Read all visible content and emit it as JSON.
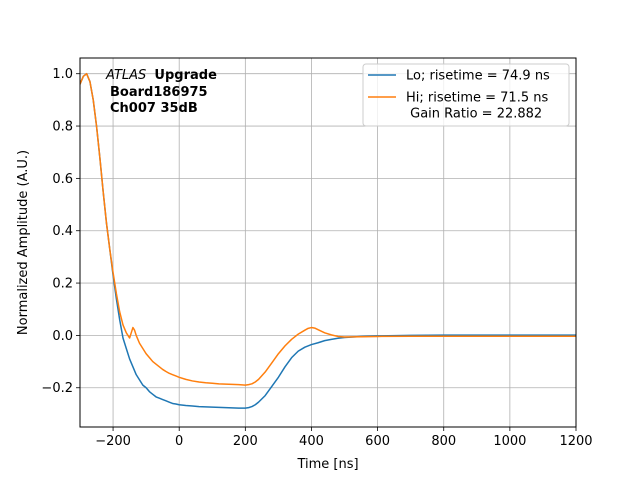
{
  "chart_data": {
    "type": "line",
    "xlabel": "Time [ns]",
    "ylabel": "Normalized Amplitude (A.U.)",
    "xlim": [
      -300,
      1200
    ],
    "ylim": [
      -0.35,
      1.06
    ],
    "xticks": [
      -200,
      0,
      200,
      400,
      600,
      800,
      1000,
      1200
    ],
    "xtick_labels": [
      "−200",
      "0",
      "200",
      "400",
      "600",
      "800",
      "1000",
      "1200"
    ],
    "yticks": [
      -0.2,
      0.0,
      0.2,
      0.4,
      0.6,
      0.8,
      1.0
    ],
    "ytick_labels": [
      "−0.2",
      "0.0",
      "0.2",
      "0.4",
      "0.6",
      "0.8",
      "1.0"
    ],
    "grid": true,
    "legend_position": "top-right",
    "annotation": {
      "italic": "ATLAS",
      "bold": "Upgrade",
      "line2": "Board186975",
      "line3": "Ch007 35dB"
    },
    "series": [
      {
        "name": "Lo; risetime = 74.9 ns",
        "color": "#1f77b4",
        "x": [
          -300,
          -290,
          -280,
          -270,
          -260,
          -250,
          -240,
          -230,
          -220,
          -210,
          -200,
          -190,
          -180,
          -170,
          -160,
          -150,
          -140,
          -130,
          -120,
          -110,
          -100,
          -90,
          -80,
          -70,
          -60,
          -50,
          -40,
          -30,
          -20,
          -10,
          0,
          20,
          40,
          60,
          80,
          100,
          120,
          140,
          160,
          180,
          200,
          210,
          220,
          230,
          240,
          260,
          280,
          300,
          320,
          340,
          360,
          380,
          400,
          420,
          440,
          460,
          480,
          500,
          550,
          600,
          700,
          800,
          900,
          1000,
          1100,
          1200
        ],
        "y": [
          0.96,
          0.99,
          1.0,
          0.97,
          0.9,
          0.8,
          0.68,
          0.55,
          0.43,
          0.33,
          0.23,
          0.14,
          0.06,
          -0.01,
          -0.05,
          -0.09,
          -0.12,
          -0.15,
          -0.17,
          -0.19,
          -0.2,
          -0.215,
          -0.225,
          -0.235,
          -0.24,
          -0.245,
          -0.25,
          -0.255,
          -0.26,
          -0.262,
          -0.265,
          -0.268,
          -0.27,
          -0.272,
          -0.273,
          -0.274,
          -0.275,
          -0.276,
          -0.277,
          -0.278,
          -0.278,
          -0.276,
          -0.272,
          -0.265,
          -0.255,
          -0.23,
          -0.195,
          -0.16,
          -0.12,
          -0.085,
          -0.06,
          -0.045,
          -0.035,
          -0.028,
          -0.02,
          -0.015,
          -0.011,
          -0.008,
          -0.004,
          -0.002,
          0.0,
          0.001,
          0.001,
          0.001,
          0.001,
          0.001
        ]
      },
      {
        "name": "Hi; risetime = 71.5 ns\n Gain Ratio = 22.882",
        "color": "#ff7f0e",
        "x": [
          -300,
          -290,
          -280,
          -270,
          -260,
          -250,
          -240,
          -230,
          -220,
          -210,
          -200,
          -190,
          -180,
          -170,
          -160,
          -150,
          -145,
          -140,
          -135,
          -130,
          -120,
          -110,
          -100,
          -90,
          -80,
          -70,
          -60,
          -50,
          -40,
          -30,
          -20,
          -10,
          0,
          20,
          40,
          60,
          80,
          100,
          120,
          140,
          160,
          180,
          200,
          210,
          220,
          230,
          240,
          260,
          280,
          300,
          320,
          340,
          360,
          380,
          390,
          400,
          410,
          420,
          440,
          460,
          480,
          500,
          550,
          600,
          700,
          800,
          900,
          1000,
          1100,
          1200
        ],
        "y": [
          0.96,
          0.99,
          1.0,
          0.97,
          0.9,
          0.8,
          0.68,
          0.55,
          0.43,
          0.33,
          0.24,
          0.16,
          0.09,
          0.04,
          0.01,
          -0.01,
          0.01,
          0.03,
          0.02,
          0.0,
          -0.03,
          -0.05,
          -0.07,
          -0.085,
          -0.1,
          -0.11,
          -0.12,
          -0.13,
          -0.138,
          -0.145,
          -0.15,
          -0.155,
          -0.16,
          -0.168,
          -0.174,
          -0.178,
          -0.181,
          -0.183,
          -0.185,
          -0.186,
          -0.187,
          -0.188,
          -0.19,
          -0.188,
          -0.185,
          -0.178,
          -0.168,
          -0.14,
          -0.105,
          -0.07,
          -0.04,
          -0.015,
          0.005,
          0.02,
          0.027,
          0.03,
          0.028,
          0.022,
          0.01,
          0.002,
          -0.004,
          -0.006,
          -0.005,
          -0.004,
          -0.003,
          -0.003,
          -0.003,
          -0.003,
          -0.003,
          -0.003
        ]
      }
    ]
  }
}
